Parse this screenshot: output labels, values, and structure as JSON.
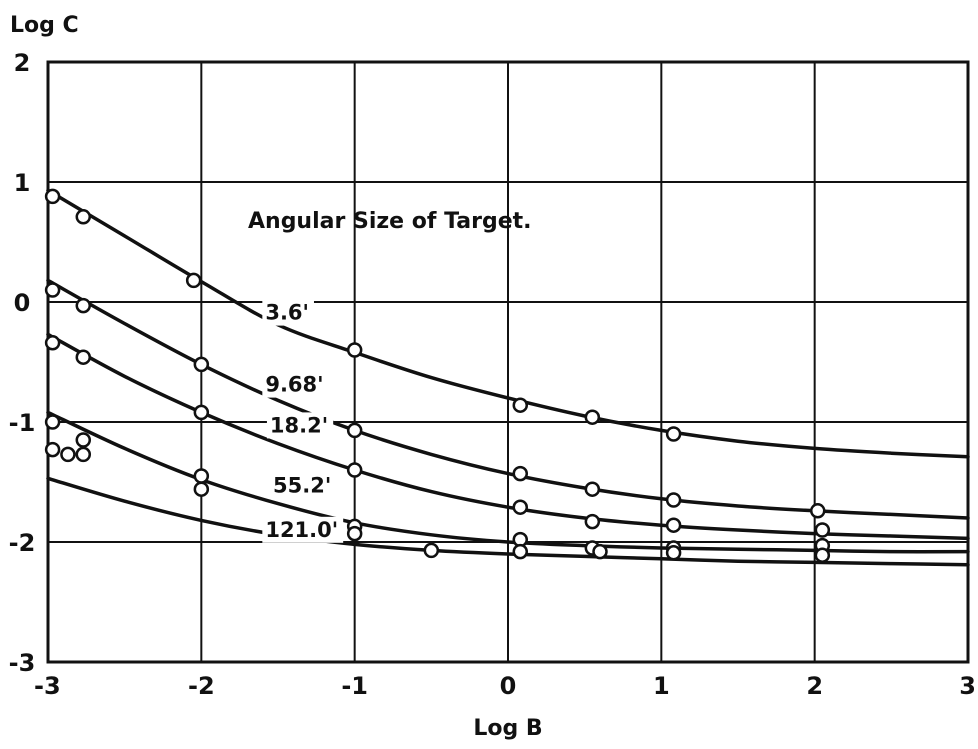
{
  "chart_data": {
    "type": "line",
    "title": "",
    "annotation": "Angular Size of Target.",
    "xlabel": "Log B",
    "ylabel": "Log C",
    "xlim": [
      -3,
      3
    ],
    "ylim": [
      -3,
      2
    ],
    "xticks": [
      "-3",
      "-2",
      "-1",
      "0",
      "1",
      "2",
      "3"
    ],
    "yticks": [
      "2",
      "1",
      "0",
      "-1",
      "-2",
      "-3"
    ],
    "grid": true,
    "legend": "none",
    "series": [
      {
        "name": "3.6'",
        "curve": [
          [
            -3.0,
            0.93
          ],
          [
            -2.5,
            0.55
          ],
          [
            -2.0,
            0.17
          ],
          [
            -1.5,
            -0.19
          ],
          [
            -1.0,
            -0.42
          ],
          [
            -0.5,
            -0.63
          ],
          [
            0.0,
            -0.8
          ],
          [
            0.5,
            -0.95
          ],
          [
            1.0,
            -1.07
          ],
          [
            1.5,
            -1.16
          ],
          [
            2.0,
            -1.22
          ],
          [
            2.5,
            -1.26
          ],
          [
            3.0,
            -1.29
          ]
        ],
        "points": [
          [
            -2.97,
            0.88
          ],
          [
            -2.77,
            0.71
          ],
          [
            -2.05,
            0.18
          ],
          [
            -1.0,
            -0.4
          ],
          [
            0.08,
            -0.86
          ],
          [
            0.55,
            -0.96
          ],
          [
            1.08,
            -1.1
          ]
        ]
      },
      {
        "name": "9.68'",
        "curve": [
          [
            -3.0,
            0.18
          ],
          [
            -2.5,
            -0.18
          ],
          [
            -2.0,
            -0.52
          ],
          [
            -1.5,
            -0.82
          ],
          [
            -1.0,
            -1.07
          ],
          [
            -0.5,
            -1.27
          ],
          [
            0.0,
            -1.43
          ],
          [
            0.5,
            -1.55
          ],
          [
            1.0,
            -1.64
          ],
          [
            1.5,
            -1.7
          ],
          [
            2.0,
            -1.74
          ],
          [
            2.5,
            -1.77
          ],
          [
            3.0,
            -1.8
          ]
        ],
        "points": [
          [
            -2.97,
            0.1
          ],
          [
            -2.77,
            -0.03
          ],
          [
            -2.0,
            -0.52
          ],
          [
            -1.0,
            -1.07
          ],
          [
            0.08,
            -1.43
          ],
          [
            0.55,
            -1.56
          ],
          [
            1.08,
            -1.65
          ],
          [
            2.02,
            -1.74
          ]
        ]
      },
      {
        "name": "18.2'",
        "curve": [
          [
            -3.0,
            -0.27
          ],
          [
            -2.5,
            -0.62
          ],
          [
            -2.0,
            -0.92
          ],
          [
            -1.5,
            -1.18
          ],
          [
            -1.0,
            -1.4
          ],
          [
            -0.5,
            -1.58
          ],
          [
            0.0,
            -1.71
          ],
          [
            0.5,
            -1.8
          ],
          [
            1.0,
            -1.86
          ],
          [
            1.5,
            -1.9
          ],
          [
            2.0,
            -1.93
          ],
          [
            2.5,
            -1.95
          ],
          [
            3.0,
            -1.97
          ]
        ],
        "points": [
          [
            -2.97,
            -0.34
          ],
          [
            -2.77,
            -0.46
          ],
          [
            -2.0,
            -0.92
          ],
          [
            -1.0,
            -1.4
          ],
          [
            0.08,
            -1.71
          ],
          [
            0.55,
            -1.83
          ],
          [
            1.08,
            -1.86
          ],
          [
            2.05,
            -1.9
          ]
        ]
      },
      {
        "name": "55.2'",
        "curve": [
          [
            -3.0,
            -0.92
          ],
          [
            -2.5,
            -1.22
          ],
          [
            -2.0,
            -1.48
          ],
          [
            -1.5,
            -1.68
          ],
          [
            -1.0,
            -1.84
          ],
          [
            -0.5,
            -1.94
          ],
          [
            0.0,
            -2.0
          ],
          [
            0.5,
            -2.03
          ],
          [
            1.0,
            -2.05
          ],
          [
            1.5,
            -2.06
          ],
          [
            2.0,
            -2.07
          ],
          [
            2.5,
            -2.08
          ],
          [
            3.0,
            -2.08
          ]
        ],
        "points": [
          [
            -2.97,
            -1.0
          ],
          [
            -2.77,
            -1.15
          ],
          [
            -2.0,
            -1.45
          ],
          [
            -1.0,
            -1.87
          ],
          [
            0.08,
            -1.98
          ],
          [
            0.55,
            -2.05
          ],
          [
            1.08,
            -2.05
          ],
          [
            2.05,
            -2.03
          ]
        ]
      },
      {
        "name": "121.0'",
        "curve": [
          [
            -3.0,
            -1.47
          ],
          [
            -2.5,
            -1.66
          ],
          [
            -2.0,
            -1.82
          ],
          [
            -1.5,
            -1.94
          ],
          [
            -1.0,
            -2.02
          ],
          [
            -0.5,
            -2.07
          ],
          [
            0.0,
            -2.1
          ],
          [
            0.5,
            -2.12
          ],
          [
            1.0,
            -2.14
          ],
          [
            1.5,
            -2.16
          ],
          [
            2.0,
            -2.17
          ],
          [
            2.5,
            -2.18
          ],
          [
            3.0,
            -2.19
          ]
        ],
        "points": [
          [
            -2.97,
            -1.23
          ],
          [
            -2.87,
            -1.27
          ],
          [
            -2.77,
            -1.27
          ],
          [
            -2.0,
            -1.56
          ],
          [
            -1.0,
            -1.93
          ],
          [
            -0.5,
            -2.07
          ],
          [
            0.08,
            -2.08
          ],
          [
            0.6,
            -2.08
          ],
          [
            1.08,
            -2.09
          ],
          [
            2.05,
            -2.11
          ]
        ]
      }
    ]
  }
}
